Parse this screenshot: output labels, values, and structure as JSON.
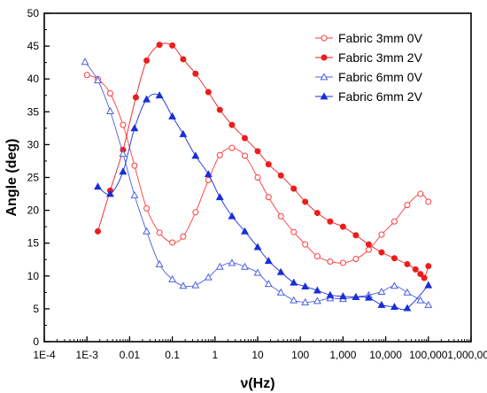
{
  "chart_data": {
    "type": "line",
    "xlabel": "ν(Hz)",
    "ylabel": "Angle (deg)",
    "x_scale": "log",
    "xlim": [
      0.0001,
      1000000
    ],
    "ylim": [
      0,
      50
    ],
    "x_ticks": [
      0.0001,
      0.001,
      0.01,
      0.1,
      1,
      10,
      100,
      1000,
      10000,
      100000,
      1000000
    ],
    "x_tick_labels": [
      "1E-4",
      "1E-3",
      "0.01",
      "0.1",
      "1",
      "10",
      "100",
      "1,000",
      "10,000",
      "100,000",
      "1,000,000"
    ],
    "y_ticks": [
      0,
      5,
      10,
      15,
      20,
      25,
      30,
      35,
      40,
      45,
      50
    ],
    "y_tick_labels": [
      "0",
      "5",
      "10",
      "15",
      "20",
      "25",
      "30",
      "35",
      "40",
      "45",
      "50"
    ],
    "grid": false,
    "legend_position": "top-right",
    "series": [
      {
        "name": "Fabric 3mm 0V",
        "color": "#ff3b3b",
        "marker": "circle-open",
        "points": [
          [
            0.001,
            40.6
          ],
          [
            0.0018,
            40.0
          ],
          [
            0.0035,
            37.8
          ],
          [
            0.007,
            33.0
          ],
          [
            0.013,
            26.8
          ],
          [
            0.025,
            20.3
          ],
          [
            0.05,
            16.6
          ],
          [
            0.1,
            15.1
          ],
          [
            0.18,
            16.0
          ],
          [
            0.35,
            19.7
          ],
          [
            0.7,
            24.6
          ],
          [
            1.3,
            28.4
          ],
          [
            2.5,
            29.5
          ],
          [
            5,
            28.3
          ],
          [
            10,
            25.0
          ],
          [
            18,
            22.0
          ],
          [
            35,
            19.1
          ],
          [
            70,
            16.7
          ],
          [
            130,
            14.8
          ],
          [
            250,
            13.0
          ],
          [
            500,
            12.2
          ],
          [
            1000,
            12.0
          ],
          [
            2000,
            12.6
          ],
          [
            4000,
            14.0
          ],
          [
            8000,
            16.3
          ],
          [
            16000,
            18.3
          ],
          [
            32000,
            20.8
          ],
          [
            65000,
            22.5
          ],
          [
            100000,
            21.3
          ]
        ]
      },
      {
        "name": "Fabric 3mm 2V",
        "color": "#ee1c1c",
        "marker": "circle-filled",
        "points": [
          [
            0.0018,
            16.8
          ],
          [
            0.0035,
            23.0
          ],
          [
            0.007,
            29.2
          ],
          [
            0.014,
            37.2
          ],
          [
            0.025,
            42.8
          ],
          [
            0.05,
            45.2
          ],
          [
            0.1,
            45.1
          ],
          [
            0.18,
            43.0
          ],
          [
            0.35,
            40.8
          ],
          [
            0.7,
            38.0
          ],
          [
            1.3,
            35.3
          ],
          [
            2.5,
            33.0
          ],
          [
            5,
            31.0
          ],
          [
            10,
            29.0
          ],
          [
            18,
            27.0
          ],
          [
            35,
            25.3
          ],
          [
            70,
            23.3
          ],
          [
            130,
            21.3
          ],
          [
            250,
            19.6
          ],
          [
            500,
            18.3
          ],
          [
            1000,
            17.5
          ],
          [
            2000,
            16.2
          ],
          [
            4000,
            14.8
          ],
          [
            8000,
            13.6
          ],
          [
            16000,
            12.7
          ],
          [
            32000,
            11.8
          ],
          [
            50000,
            11.0
          ],
          [
            65000,
            10.3
          ],
          [
            80000,
            9.7
          ],
          [
            100000,
            11.5
          ]
        ]
      },
      {
        "name": "Fabric 6mm 0V",
        "color": "#4b5fe0",
        "marker": "triangle-open",
        "points": [
          [
            0.0009,
            42.6
          ],
          [
            0.0018,
            39.8
          ],
          [
            0.0035,
            35.1
          ],
          [
            0.007,
            28.6
          ],
          [
            0.013,
            22.3
          ],
          [
            0.025,
            16.8
          ],
          [
            0.05,
            11.8
          ],
          [
            0.1,
            9.5
          ],
          [
            0.18,
            8.5
          ],
          [
            0.35,
            8.6
          ],
          [
            0.7,
            9.8
          ],
          [
            1.3,
            11.4
          ],
          [
            2.5,
            12.0
          ],
          [
            5,
            11.4
          ],
          [
            10,
            10.5
          ],
          [
            18,
            8.8
          ],
          [
            35,
            7.5
          ],
          [
            70,
            6.3
          ],
          [
            130,
            6.0
          ],
          [
            250,
            6.2
          ],
          [
            500,
            6.6
          ],
          [
            1000,
            6.5
          ],
          [
            2000,
            6.8
          ],
          [
            4000,
            7.1
          ],
          [
            8000,
            7.6
          ],
          [
            16000,
            8.5
          ],
          [
            32000,
            7.5
          ],
          [
            65000,
            6.3
          ],
          [
            100000,
            5.6
          ]
        ]
      },
      {
        "name": "Fabric 6mm 2V",
        "color": "#1a2ed8",
        "marker": "triangle-filled",
        "points": [
          [
            0.0018,
            23.6
          ],
          [
            0.0035,
            22.5
          ],
          [
            0.007,
            25.9
          ],
          [
            0.013,
            32.5
          ],
          [
            0.025,
            36.9
          ],
          [
            0.05,
            37.5
          ],
          [
            0.1,
            34.3
          ],
          [
            0.18,
            31.6
          ],
          [
            0.35,
            28.3
          ],
          [
            0.7,
            25.5
          ],
          [
            1.3,
            22.0
          ],
          [
            2.5,
            19.1
          ],
          [
            5,
            16.8
          ],
          [
            10,
            14.4
          ],
          [
            18,
            12.3
          ],
          [
            35,
            10.6
          ],
          [
            70,
            9.0
          ],
          [
            130,
            8.4
          ],
          [
            250,
            7.8
          ],
          [
            500,
            7.1
          ],
          [
            1000,
            6.9
          ],
          [
            2000,
            6.8
          ],
          [
            4000,
            6.7
          ],
          [
            8000,
            5.6
          ],
          [
            16000,
            5.3
          ],
          [
            32000,
            5.1
          ],
          [
            100000,
            8.6
          ]
        ]
      }
    ]
  }
}
